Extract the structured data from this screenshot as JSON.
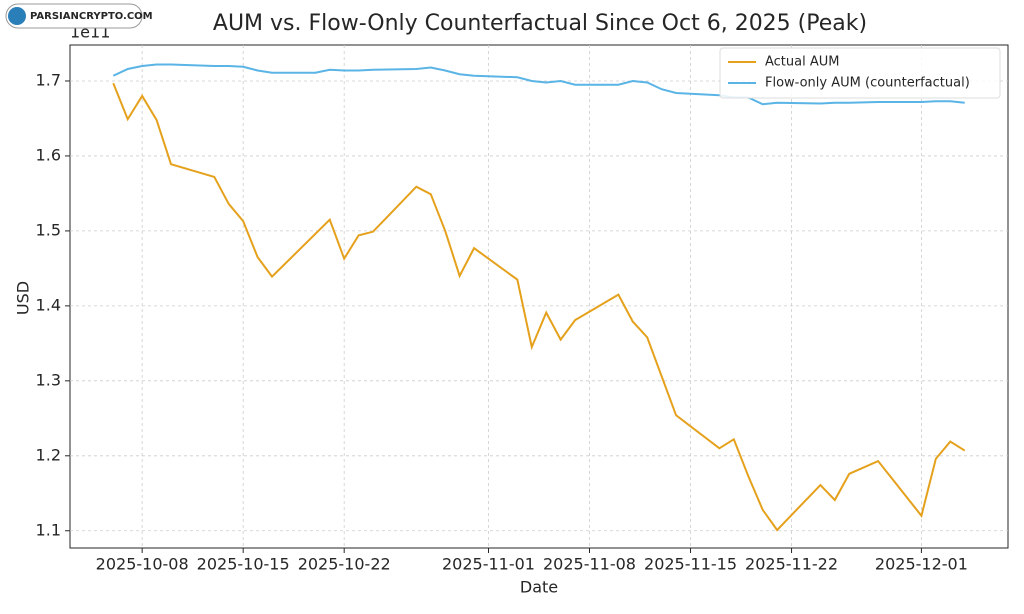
{
  "watermark": "PARSIANCRYPTO.COM",
  "chart_data": {
    "type": "line",
    "title": "AUM vs. Flow-Only Counterfactual Since Oct 6, 2025 (Peak)",
    "x_label": "Date",
    "y_label": "USD",
    "y_offset_label": "1e11",
    "xlim": [
      "2025-10-03",
      "2025-12-07"
    ],
    "xticks": [
      "2025-10-08",
      "2025-10-15",
      "2025-10-22",
      "2025-11-01",
      "2025-11-08",
      "2025-11-15",
      "2025-11-22",
      "2025-12-01"
    ],
    "ylim": [
      1.077,
      1.748
    ],
    "yticks": [
      1.1,
      1.2,
      1.3,
      1.4,
      1.5,
      1.6,
      1.7
    ],
    "grid": true,
    "legend": "upper right",
    "series": [
      {
        "name": "Actual AUM",
        "color": "#e5a11c",
        "x": [
          "2025-10-06",
          "2025-10-07",
          "2025-10-08",
          "2025-10-09",
          "2025-10-10",
          "2025-10-13",
          "2025-10-14",
          "2025-10-15",
          "2025-10-16",
          "2025-10-17",
          "2025-10-21",
          "2025-10-22",
          "2025-10-23",
          "2025-10-24",
          "2025-10-27",
          "2025-10-28",
          "2025-10-29",
          "2025-10-30",
          "2025-10-31",
          "2025-11-03",
          "2025-11-04",
          "2025-11-05",
          "2025-11-06",
          "2025-11-07",
          "2025-11-10",
          "2025-11-11",
          "2025-11-12",
          "2025-11-14",
          "2025-11-17",
          "2025-11-18",
          "2025-11-19",
          "2025-11-20",
          "2025-11-21",
          "2025-11-24",
          "2025-11-25",
          "2025-11-26",
          "2025-11-28",
          "2025-12-01",
          "2025-12-02",
          "2025-12-03",
          "2025-12-04"
        ],
        "values": [
          1.697,
          1.649,
          1.68,
          1.648,
          1.589,
          1.572,
          1.536,
          1.513,
          1.465,
          1.439,
          1.515,
          1.463,
          1.494,
          1.499,
          1.559,
          1.549,
          1.5,
          1.44,
          1.477,
          1.435,
          1.345,
          1.391,
          1.355,
          1.381,
          1.415,
          1.379,
          1.358,
          1.254,
          1.21,
          1.222,
          1.173,
          1.128,
          1.101,
          1.161,
          1.141,
          1.176,
          1.193,
          1.12,
          1.196,
          1.219,
          1.207
        ]
      },
      {
        "name": "Flow-only AUM (counterfactual)",
        "color": "#5ab4e5",
        "x": [
          "2025-10-06",
          "2025-10-07",
          "2025-10-08",
          "2025-10-09",
          "2025-10-10",
          "2025-10-13",
          "2025-10-14",
          "2025-10-15",
          "2025-10-16",
          "2025-10-17",
          "2025-10-20",
          "2025-10-21",
          "2025-10-22",
          "2025-10-23",
          "2025-10-24",
          "2025-10-27",
          "2025-10-28",
          "2025-10-29",
          "2025-10-30",
          "2025-10-31",
          "2025-11-03",
          "2025-11-04",
          "2025-11-05",
          "2025-11-06",
          "2025-11-07",
          "2025-11-10",
          "2025-11-11",
          "2025-11-12",
          "2025-11-13",
          "2025-11-14",
          "2025-11-17",
          "2025-11-18",
          "2025-11-19",
          "2025-11-20",
          "2025-11-21",
          "2025-11-24",
          "2025-11-25",
          "2025-11-26",
          "2025-11-28",
          "2025-12-01",
          "2025-12-02",
          "2025-12-03",
          "2025-12-04"
        ],
        "values": [
          1.707,
          1.716,
          1.72,
          1.722,
          1.722,
          1.72,
          1.72,
          1.719,
          1.714,
          1.711,
          1.711,
          1.715,
          1.714,
          1.714,
          1.715,
          1.716,
          1.718,
          1.714,
          1.709,
          1.707,
          1.705,
          1.7,
          1.698,
          1.7,
          1.695,
          1.695,
          1.7,
          1.698,
          1.689,
          1.684,
          1.681,
          1.678,
          1.678,
          1.669,
          1.671,
          1.67,
          1.671,
          1.671,
          1.672,
          1.672,
          1.673,
          1.673,
          1.671
        ]
      }
    ]
  }
}
